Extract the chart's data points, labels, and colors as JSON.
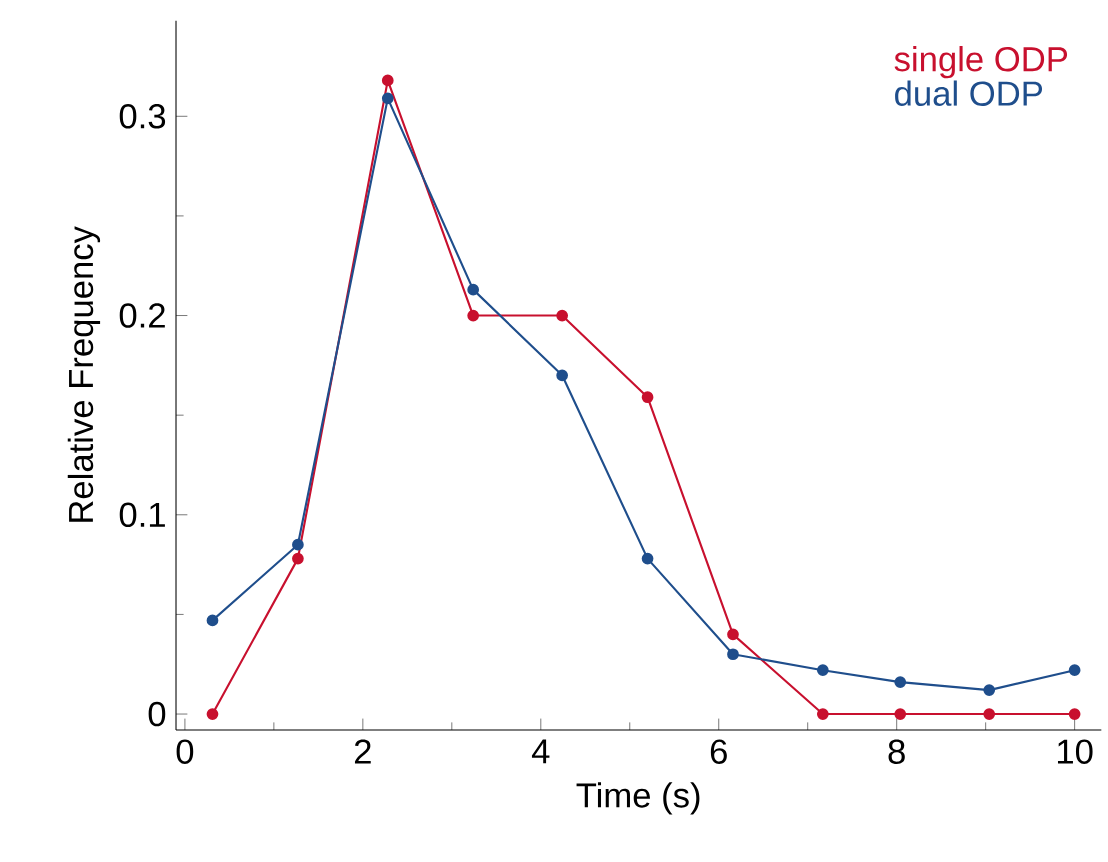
{
  "chart_data": {
    "type": "line",
    "xlabel": "Time (s)",
    "ylabel": "Relative Frequency",
    "x": [
      0.31,
      1.27,
      2.28,
      3.24,
      4.24,
      5.2,
      6.16,
      7.17,
      8.04,
      9.04,
      10.0
    ],
    "series": [
      {
        "name": "single ODP",
        "color": "#c8102e",
        "values": [
          0,
          0.078,
          0.318,
          0.2,
          0.2,
          0.159,
          0.04,
          0,
          0,
          0,
          0
        ]
      },
      {
        "name": "dual ODP",
        "color": "#1f4e8c",
        "values": [
          0.047,
          0.085,
          0.309,
          0.213,
          0.17,
          0.078,
          0.03,
          0.022,
          0.016,
          0.012,
          0.022
        ]
      }
    ],
    "xlim": [
      -0.1,
      10.3
    ],
    "ylim": [
      -0.008,
      0.348
    ],
    "xticks": [
      0,
      2,
      4,
      6,
      8,
      10
    ],
    "yticks": [
      0,
      0.1,
      0.2,
      0.3
    ],
    "marker": "circle",
    "line_style": "solid",
    "legend": "top right",
    "grid": false
  }
}
